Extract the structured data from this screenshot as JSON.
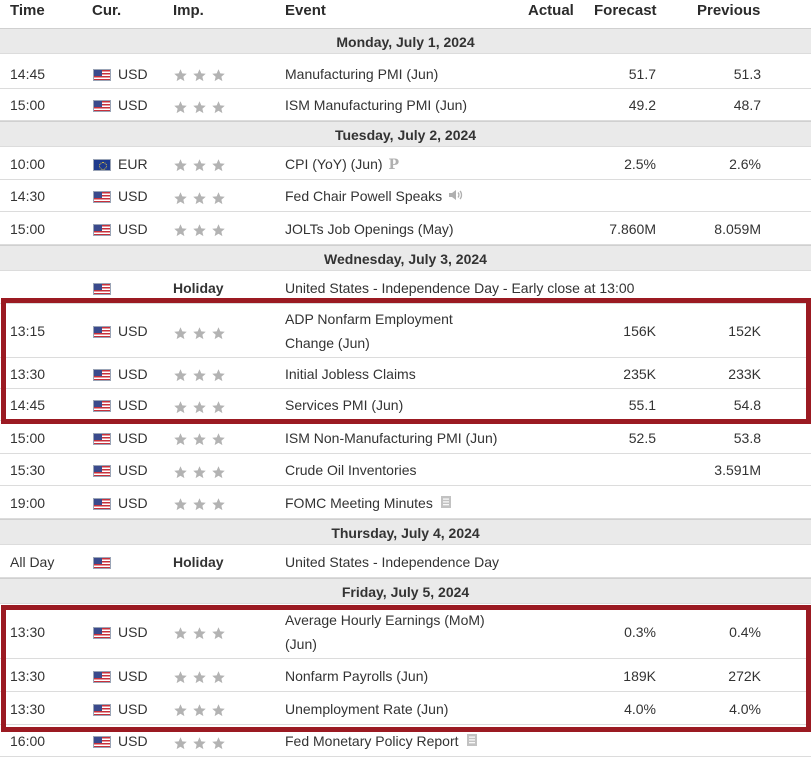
{
  "columns": {
    "time": "Time",
    "currency": "Cur.",
    "importance": "Imp.",
    "event": "Event",
    "actual": "Actual",
    "forecast": "Forecast",
    "previous": "Previous"
  },
  "days": [
    {
      "label": "Monday, July 1, 2024",
      "events": [
        {
          "time": "14:45",
          "flag": "us-flag-icon",
          "currency": "USD",
          "impact": "3-star-icon",
          "event": "Manufacturing PMI (Jun)",
          "actual": "",
          "forecast": "51.7",
          "previous": "51.3"
        },
        {
          "time": "15:00",
          "flag": "us-flag-icon",
          "currency": "USD",
          "impact": "3-star-icon",
          "event": "ISM Manufacturing PMI (Jun)",
          "actual": "",
          "forecast": "49.2",
          "previous": "48.7"
        }
      ]
    },
    {
      "label": "Tuesday, July 2, 2024",
      "events": [
        {
          "time": "10:00",
          "flag": "eu-flag-icon",
          "currency": "EUR",
          "impact": "3-star-icon",
          "event": "CPI (YoY) (Jun)",
          "icon": "preliminary-icon",
          "icon_text": "P",
          "actual": "",
          "forecast": "2.5%",
          "previous": "2.6%"
        },
        {
          "time": "14:30",
          "flag": "us-flag-icon",
          "currency": "USD",
          "impact": "3-star-icon",
          "event": "Fed Chair Powell Speaks",
          "icon": "speaker-icon",
          "actual": "",
          "forecast": "",
          "previous": ""
        },
        {
          "time": "15:00",
          "flag": "us-flag-icon",
          "currency": "USD",
          "impact": "3-star-icon",
          "event": "JOLTs Job Openings (May)",
          "actual": "",
          "forecast": "7.860M",
          "previous": "8.059M"
        }
      ]
    },
    {
      "label": "Wednesday, July 3, 2024",
      "events": [
        {
          "time": "",
          "flag": "us-flag-icon",
          "currency": "",
          "holiday": "Holiday",
          "event": "United States - Independence Day - Early close at 13:00",
          "actual": "",
          "forecast": "",
          "previous": ""
        },
        {
          "time": "13:15",
          "flag": "us-flag-icon",
          "currency": "USD",
          "impact": "3-star-icon",
          "event_line1": "ADP Nonfarm Employment",
          "event_line2": "Change (Jun)",
          "actual": "",
          "forecast": "156K",
          "previous": "152K"
        },
        {
          "time": "13:30",
          "flag": "us-flag-icon",
          "currency": "USD",
          "impact": "3-star-icon",
          "event": "Initial Jobless Claims",
          "actual": "",
          "forecast": "235K",
          "previous": "233K"
        },
        {
          "time": "14:45",
          "flag": "us-flag-icon",
          "currency": "USD",
          "impact": "3-star-icon",
          "event": "Services PMI (Jun)",
          "actual": "",
          "forecast": "55.1",
          "previous": "54.8"
        },
        {
          "time": "15:00",
          "flag": "us-flag-icon",
          "currency": "USD",
          "impact": "3-star-icon",
          "event": "ISM Non-Manufacturing PMI (Jun)",
          "actual": "",
          "forecast": "52.5",
          "previous": "53.8"
        },
        {
          "time": "15:30",
          "flag": "us-flag-icon",
          "currency": "USD",
          "impact": "3-star-icon",
          "event": "Crude Oil Inventories",
          "actual": "",
          "forecast": "",
          "previous": "3.591M"
        },
        {
          "time": "19:00",
          "flag": "us-flag-icon",
          "currency": "USD",
          "impact": "3-star-icon",
          "event": "FOMC Meeting Minutes",
          "icon": "document-icon",
          "actual": "",
          "forecast": "",
          "previous": ""
        }
      ]
    },
    {
      "label": "Thursday, July 4, 2024",
      "events": [
        {
          "time": "All Day",
          "flag": "us-flag-icon",
          "currency": "",
          "holiday": "Holiday",
          "event": "United States - Independence Day",
          "actual": "",
          "forecast": "",
          "previous": ""
        }
      ]
    },
    {
      "label": "Friday, July 5, 2024",
      "events": [
        {
          "time": "13:30",
          "flag": "us-flag-icon",
          "currency": "USD",
          "impact": "3-star-icon",
          "event_line1": "Average Hourly Earnings (MoM)",
          "event_line2": "(Jun)",
          "actual": "",
          "forecast": "0.3%",
          "previous": "0.4%"
        },
        {
          "time": "13:30",
          "flag": "us-flag-icon",
          "currency": "USD",
          "impact": "3-star-icon",
          "event": "Nonfarm Payrolls (Jun)",
          "actual": "",
          "forecast": "189K",
          "previous": "272K"
        },
        {
          "time": "13:30",
          "flag": "us-flag-icon",
          "currency": "USD",
          "impact": "3-star-icon",
          "event": "Unemployment Rate (Jun)",
          "actual": "",
          "forecast": "4.0%",
          "previous": "4.0%"
        },
        {
          "time": "16:00",
          "flag": "us-flag-icon",
          "currency": "USD",
          "impact": "3-star-icon",
          "event": "Fed Monetary Policy Report",
          "icon": "document-icon",
          "actual": "",
          "forecast": "",
          "previous": ""
        }
      ]
    }
  ],
  "highlight_color": "#9b1a22",
  "star_color": "#b3b3b3"
}
